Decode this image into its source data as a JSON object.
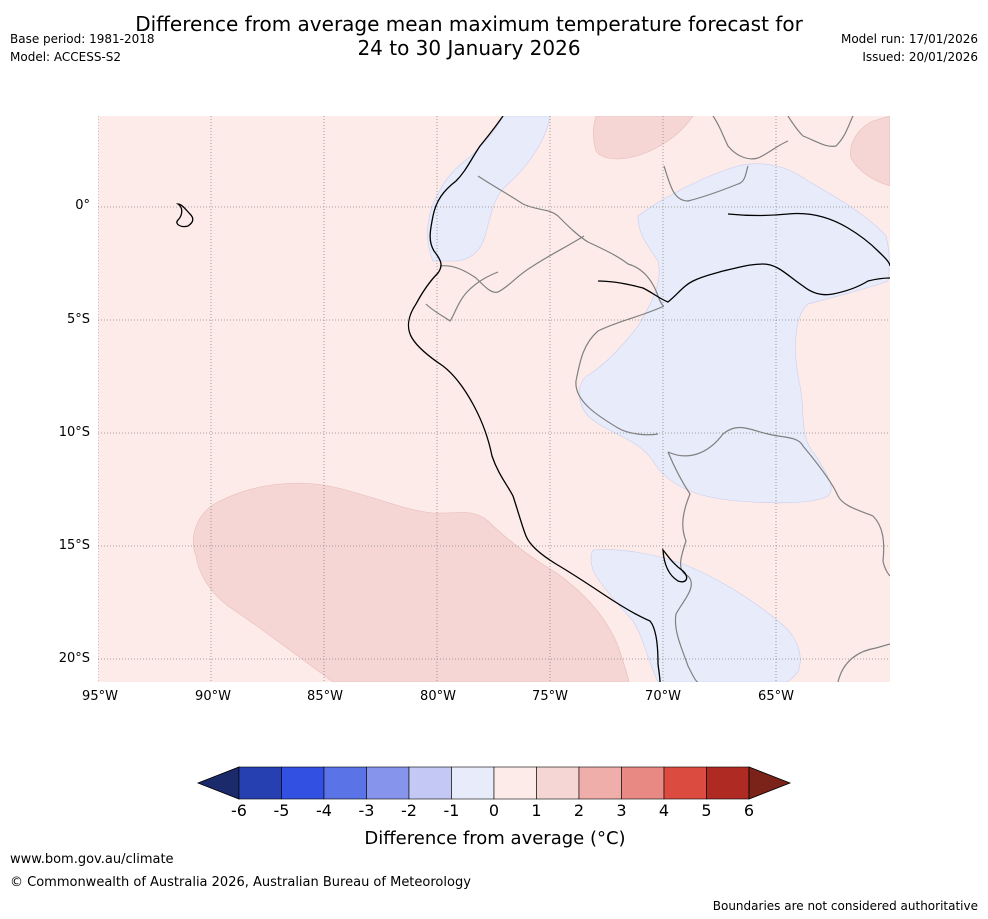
{
  "title": "Difference from average mean maximum temperature forecast for\n24 to 30 January 2026",
  "meta_left": {
    "base_period": "Base period: 1981-2018",
    "model": "Model: ACCESS-S2"
  },
  "meta_right": {
    "model_run": "Model run: 17/01/2026",
    "issued": "Issued: 20/01/2026"
  },
  "map": {
    "lat_labels": [
      "0°",
      "5°S",
      "10°S",
      "15°S",
      "20°S"
    ],
    "lon_labels": [
      "95°W",
      "90°W",
      "85°W",
      "80°W",
      "75°W",
      "70°W",
      "65°W"
    ],
    "colors": {
      "background": "#fcebe9",
      "warm_anomaly": "#f5d6d4",
      "cool_anomaly": "#e8ebfa",
      "coastline": "#000000",
      "borders": "#808080",
      "gridlines": "#888888"
    }
  },
  "colorbar": {
    "tick_labels": [
      "-6",
      "-5",
      "-4",
      "-3",
      "-2",
      "-1",
      "0",
      "1",
      "2",
      "3",
      "4",
      "5",
      "6"
    ],
    "bins": [
      {
        "range": "-6 to -5",
        "color": "#2640b1"
      },
      {
        "range": "-5 to -4",
        "color": "#3250e1"
      },
      {
        "range": "-4 to -3",
        "color": "#5a74e8"
      },
      {
        "range": "-3 to -2",
        "color": "#8694ec"
      },
      {
        "range": "-2 to -1",
        "color": "#c3c8f5"
      },
      {
        "range": "-1 to 0",
        "color": "#e8ebfa"
      },
      {
        "range": "0 to 1",
        "color": "#fcebe9"
      },
      {
        "range": "1 to 2",
        "color": "#f5d6d4"
      },
      {
        "range": "2 to 3",
        "color": "#efaeaa"
      },
      {
        "range": "3 to 4",
        "color": "#e88a83"
      },
      {
        "range": "4 to 5",
        "color": "#dc4b3f"
      },
      {
        "range": "5 to 6",
        "color": "#af2a23"
      }
    ],
    "low_extend_color": "#1b2a6b",
    "high_extend_color": "#7b2219",
    "label": "Difference from average (°C)"
  },
  "footer": {
    "url": "www.bom.gov.au/climate",
    "copyright": "© Commonwealth of Australia 2026, Australian Bureau of Meteorology",
    "disclaimer": "Boundaries are not considered authoritative"
  }
}
